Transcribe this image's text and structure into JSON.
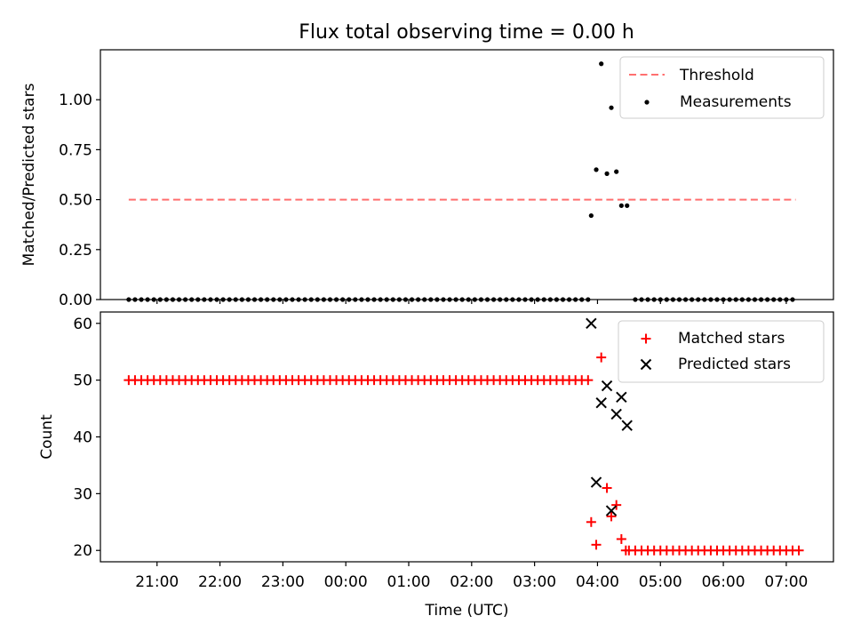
{
  "title": "Flux total observing time = 0.00 h",
  "colors": {
    "threshold": "#ff6f6f",
    "measurements": "#000000",
    "matched": "#ff0000",
    "predicted": "#000000",
    "axes": "#000000"
  },
  "chart_data": [
    {
      "type": "scatter",
      "ylabel": "Matched/Predicted stars",
      "xlabel": "",
      "xlim": [
        20.1,
        31.75
      ],
      "ylim": [
        0,
        1.25
      ],
      "yticks": [
        0.0,
        0.25,
        0.5,
        0.75,
        1.0
      ],
      "ytick_labels": [
        "0.00",
        "0.25",
        "0.50",
        "0.75",
        "1.00"
      ],
      "legend": {
        "placement": "top-right",
        "entries": [
          "Threshold",
          "Measurements"
        ]
      },
      "threshold": {
        "name": "Threshold",
        "y": 0.5,
        "x": [
          20.55,
          31.15
        ],
        "style": "dashed"
      },
      "measurements": {
        "name": "Measurements",
        "baseline": {
          "y": 0.0,
          "x_start": 20.55,
          "x_end": 27.9,
          "x2_start": 28.6,
          "x2_end": 31.15,
          "step": 0.1
        },
        "points": [
          [
            27.9,
            0.42
          ],
          [
            27.98,
            0.65
          ],
          [
            28.06,
            1.18
          ],
          [
            28.15,
            0.63
          ],
          [
            28.22,
            0.96
          ],
          [
            28.3,
            0.64
          ],
          [
            28.38,
            0.47
          ],
          [
            28.47,
            0.47
          ]
        ]
      }
    },
    {
      "type": "scatter",
      "ylabel": "Count",
      "xlabel": "Time (UTC)",
      "xlim": [
        20.1,
        31.75
      ],
      "ylim": [
        18,
        62
      ],
      "yticks": [
        20,
        30,
        40,
        50,
        60
      ],
      "ytick_labels": [
        "20",
        "30",
        "40",
        "50",
        "60"
      ],
      "xticks": [
        21,
        22,
        23,
        24,
        25,
        26,
        27,
        28,
        29,
        30,
        31
      ],
      "xtick_labels": [
        "21:00",
        "22:00",
        "23:00",
        "00:00",
        "01:00",
        "02:00",
        "03:00",
        "04:00",
        "05:00",
        "06:00",
        "07:00"
      ],
      "legend": {
        "placement": "top-right",
        "entries": [
          "Matched stars",
          "Predicted stars"
        ]
      },
      "matched": {
        "name": "Matched stars",
        "run1": {
          "y": 50,
          "x_start": 20.55,
          "x_end": 27.85,
          "step": 0.1
        },
        "run2": {
          "y": 20,
          "x_start": 28.5,
          "x_end": 31.2,
          "step": 0.1
        },
        "points": [
          [
            27.9,
            25
          ],
          [
            27.98,
            21
          ],
          [
            28.06,
            54
          ],
          [
            28.15,
            31
          ],
          [
            28.22,
            26
          ],
          [
            28.3,
            28
          ],
          [
            28.38,
            22
          ],
          [
            28.45,
            20
          ]
        ]
      },
      "predicted": {
        "name": "Predicted stars",
        "points": [
          [
            27.9,
            60
          ],
          [
            27.98,
            32
          ],
          [
            28.06,
            46
          ],
          [
            28.15,
            49
          ],
          [
            28.22,
            27
          ],
          [
            28.3,
            44
          ],
          [
            28.38,
            47
          ],
          [
            28.47,
            42
          ]
        ]
      }
    }
  ]
}
